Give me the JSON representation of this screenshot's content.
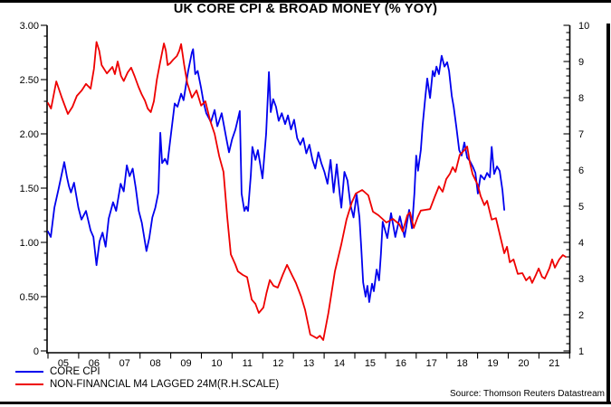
{
  "title": "UK CORE CPI & BROAD MONEY (% YOY)",
  "source_note": "Source: Thomson Reuters Datastream",
  "colors": {
    "cpi_blue": "#0000ee",
    "m4_red": "#ee0000",
    "frame_black": "#000000"
  },
  "chart_data": {
    "type": "line",
    "title": "UK CORE CPI & BROAD MONEY (% YOY)",
    "grid": false,
    "legend_position": "bottom-left",
    "x_axis": {
      "tick_labels": [
        "05",
        "06",
        "07",
        "08",
        "09",
        "10",
        "11",
        "12",
        "13",
        "14",
        "15",
        "16",
        "17",
        "18",
        "19",
        "20",
        "21"
      ],
      "range_years": [
        2005,
        2022
      ]
    },
    "left_axis": {
      "min": 0,
      "max": 3,
      "major_step": 0.5,
      "minor_step": 0.1,
      "tick_labels": [
        "3.00",
        "2.50",
        "2.00",
        "1.50",
        "1.00",
        "0.50",
        "0"
      ]
    },
    "right_axis": {
      "min": 1,
      "max": 10,
      "major_step": 1,
      "minor_step": 0.2,
      "tick_labels": [
        "10",
        "9",
        "8",
        "7",
        "6",
        "5",
        "4",
        "3",
        "2",
        "1"
      ]
    },
    "series": [
      {
        "name": "CORE CPI",
        "axis": "left",
        "color": "#0000ee",
        "points": [
          [
            2005.0,
            1.1
          ],
          [
            2005.09,
            1.05
          ],
          [
            2005.21,
            1.32
          ],
          [
            2005.35,
            1.5
          ],
          [
            2005.53,
            1.74
          ],
          [
            2005.62,
            1.6
          ],
          [
            2005.68,
            1.52
          ],
          [
            2005.75,
            1.46
          ],
          [
            2005.85,
            1.55
          ],
          [
            2005.99,
            1.32
          ],
          [
            2006.09,
            1.21
          ],
          [
            2006.24,
            1.29
          ],
          [
            2006.39,
            1.11
          ],
          [
            2006.48,
            1.05
          ],
          [
            2006.58,
            0.79
          ],
          [
            2006.68,
            1.01
          ],
          [
            2006.78,
            1.09
          ],
          [
            2006.88,
            0.96
          ],
          [
            2006.98,
            1.22
          ],
          [
            2007.12,
            1.37
          ],
          [
            2007.22,
            1.29
          ],
          [
            2007.37,
            1.54
          ],
          [
            2007.47,
            1.47
          ],
          [
            2007.57,
            1.71
          ],
          [
            2007.66,
            1.61
          ],
          [
            2007.76,
            1.68
          ],
          [
            2007.86,
            1.5
          ],
          [
            2007.96,
            1.29
          ],
          [
            2008.06,
            1.18
          ],
          [
            2008.21,
            0.92
          ],
          [
            2008.3,
            1.04
          ],
          [
            2008.4,
            1.23
          ],
          [
            2008.5,
            1.32
          ],
          [
            2008.6,
            1.46
          ],
          [
            2008.66,
            2.01
          ],
          [
            2008.72,
            1.73
          ],
          [
            2008.81,
            1.77
          ],
          [
            2008.89,
            1.72
          ],
          [
            2008.98,
            1.93
          ],
          [
            2009.13,
            2.28
          ],
          [
            2009.22,
            2.25
          ],
          [
            2009.34,
            2.37
          ],
          [
            2009.42,
            2.31
          ],
          [
            2009.57,
            2.58
          ],
          [
            2009.69,
            2.75
          ],
          [
            2009.73,
            2.78
          ],
          [
            2009.8,
            2.55
          ],
          [
            2009.88,
            2.58
          ],
          [
            2009.99,
            2.42
          ],
          [
            2010.07,
            2.29
          ],
          [
            2010.16,
            2.19
          ],
          [
            2010.31,
            2.11
          ],
          [
            2010.43,
            2.22
          ],
          [
            2010.52,
            2.07
          ],
          [
            2010.66,
            2.19
          ],
          [
            2010.81,
            1.96
          ],
          [
            2010.9,
            1.83
          ],
          [
            2011.0,
            1.95
          ],
          [
            2011.11,
            2.04
          ],
          [
            2011.25,
            2.21
          ],
          [
            2011.31,
            1.45
          ],
          [
            2011.4,
            1.29
          ],
          [
            2011.46,
            1.33
          ],
          [
            2011.52,
            1.29
          ],
          [
            2011.61,
            1.62
          ],
          [
            2011.66,
            1.88
          ],
          [
            2011.76,
            1.76
          ],
          [
            2011.84,
            1.85
          ],
          [
            2011.99,
            1.59
          ],
          [
            2012.11,
            2.0
          ],
          [
            2012.2,
            2.57
          ],
          [
            2012.26,
            2.2
          ],
          [
            2012.34,
            2.32
          ],
          [
            2012.43,
            2.25
          ],
          [
            2012.52,
            2.12
          ],
          [
            2012.62,
            2.19
          ],
          [
            2012.73,
            2.09
          ],
          [
            2012.82,
            2.17
          ],
          [
            2012.92,
            2.04
          ],
          [
            2013.02,
            2.13
          ],
          [
            2013.12,
            1.96
          ],
          [
            2013.22,
            1.9
          ],
          [
            2013.32,
            1.96
          ],
          [
            2013.42,
            1.82
          ],
          [
            2013.52,
            1.9
          ],
          [
            2013.62,
            1.76
          ],
          [
            2013.71,
            1.68
          ],
          [
            2013.81,
            1.83
          ],
          [
            2013.91,
            1.73
          ],
          [
            2014.01,
            1.65
          ],
          [
            2014.11,
            1.54
          ],
          [
            2014.21,
            1.76
          ],
          [
            2014.31,
            1.46
          ],
          [
            2014.41,
            1.72
          ],
          [
            2014.51,
            1.44
          ],
          [
            2014.56,
            1.32
          ],
          [
            2014.66,
            1.65
          ],
          [
            2014.76,
            1.57
          ],
          [
            2014.86,
            1.34
          ],
          [
            2014.96,
            1.23
          ],
          [
            2015.06,
            1.44
          ],
          [
            2015.15,
            1.23
          ],
          [
            2015.21,
            0.95
          ],
          [
            2015.27,
            0.63
          ],
          [
            2015.35,
            0.5
          ],
          [
            2015.41,
            0.6
          ],
          [
            2015.47,
            0.45
          ],
          [
            2015.56,
            0.62
          ],
          [
            2015.62,
            0.55
          ],
          [
            2015.71,
            0.75
          ],
          [
            2015.79,
            0.65
          ],
          [
            2015.85,
            0.89
          ],
          [
            2015.91,
            1.19
          ],
          [
            2016.06,
            1.04
          ],
          [
            2016.18,
            1.27
          ],
          [
            2016.32,
            1.05
          ],
          [
            2016.47,
            1.24
          ],
          [
            2016.62,
            1.05
          ],
          [
            2016.77,
            1.3
          ],
          [
            2016.86,
            1.13
          ],
          [
            2016.94,
            1.45
          ],
          [
            2017.0,
            1.8
          ],
          [
            2017.06,
            1.66
          ],
          [
            2017.15,
            1.85
          ],
          [
            2017.21,
            2.08
          ],
          [
            2017.3,
            2.35
          ],
          [
            2017.36,
            2.51
          ],
          [
            2017.45,
            2.33
          ],
          [
            2017.54,
            2.58
          ],
          [
            2017.6,
            2.53
          ],
          [
            2017.66,
            2.62
          ],
          [
            2017.74,
            2.55
          ],
          [
            2017.83,
            2.72
          ],
          [
            2017.92,
            2.62
          ],
          [
            2018.01,
            2.66
          ],
          [
            2018.07,
            2.58
          ],
          [
            2018.16,
            2.35
          ],
          [
            2018.22,
            2.25
          ],
          [
            2018.31,
            2.06
          ],
          [
            2018.4,
            1.85
          ],
          [
            2018.48,
            1.8
          ],
          [
            2018.57,
            1.92
          ],
          [
            2018.66,
            1.78
          ],
          [
            2018.75,
            1.75
          ],
          [
            2018.84,
            1.7
          ],
          [
            2018.93,
            1.64
          ],
          [
            2019.01,
            1.45
          ],
          [
            2019.1,
            1.62
          ],
          [
            2019.22,
            1.58
          ],
          [
            2019.31,
            1.64
          ],
          [
            2019.4,
            1.6
          ],
          [
            2019.46,
            1.88
          ],
          [
            2019.54,
            1.63
          ],
          [
            2019.63,
            1.7
          ],
          [
            2019.72,
            1.66
          ],
          [
            2019.81,
            1.48
          ],
          [
            2019.87,
            1.3
          ]
        ]
      },
      {
        "name": "NON-FINANCIAL M4 LAGGED 24M(R.H.SCALE)",
        "axis": "right",
        "color": "#ee0000",
        "points": [
          [
            2005.0,
            7.85
          ],
          [
            2005.1,
            7.7
          ],
          [
            2005.27,
            8.45
          ],
          [
            2005.45,
            8.0
          ],
          [
            2005.65,
            7.55
          ],
          [
            2005.8,
            7.75
          ],
          [
            2005.94,
            8.05
          ],
          [
            2006.1,
            8.2
          ],
          [
            2006.24,
            8.38
          ],
          [
            2006.39,
            8.25
          ],
          [
            2006.5,
            8.8
          ],
          [
            2006.58,
            9.54
          ],
          [
            2006.67,
            9.3
          ],
          [
            2006.75,
            8.9
          ],
          [
            2006.92,
            8.67
          ],
          [
            2007.0,
            8.75
          ],
          [
            2007.1,
            8.85
          ],
          [
            2007.18,
            8.65
          ],
          [
            2007.27,
            9.0
          ],
          [
            2007.38,
            8.6
          ],
          [
            2007.47,
            8.46
          ],
          [
            2007.6,
            8.7
          ],
          [
            2007.71,
            8.83
          ],
          [
            2007.82,
            8.6
          ],
          [
            2007.95,
            8.3
          ],
          [
            2008.05,
            8.1
          ],
          [
            2008.16,
            7.92
          ],
          [
            2008.25,
            7.7
          ],
          [
            2008.35,
            7.6
          ],
          [
            2008.45,
            7.9
          ],
          [
            2008.55,
            8.5
          ],
          [
            2008.66,
            9.0
          ],
          [
            2008.72,
            9.25
          ],
          [
            2008.78,
            9.5
          ],
          [
            2008.84,
            9.3
          ],
          [
            2008.9,
            8.9
          ],
          [
            2008.98,
            8.95
          ],
          [
            2009.08,
            9.05
          ],
          [
            2009.2,
            9.15
          ],
          [
            2009.28,
            9.3
          ],
          [
            2009.34,
            9.48
          ],
          [
            2009.44,
            8.9
          ],
          [
            2009.54,
            8.4
          ],
          [
            2009.69,
            8.0
          ],
          [
            2009.84,
            8.2
          ],
          [
            2009.99,
            7.78
          ],
          [
            2010.13,
            7.9
          ],
          [
            2010.28,
            7.38
          ],
          [
            2010.43,
            7.0
          ],
          [
            2010.58,
            6.38
          ],
          [
            2010.72,
            5.95
          ],
          [
            2010.84,
            4.71
          ],
          [
            2010.96,
            3.67
          ],
          [
            2011.1,
            3.4
          ],
          [
            2011.19,
            3.2
          ],
          [
            2011.35,
            3.1
          ],
          [
            2011.49,
            3.04
          ],
          [
            2011.64,
            2.42
          ],
          [
            2011.76,
            2.3
          ],
          [
            2011.87,
            2.05
          ],
          [
            2012.02,
            2.2
          ],
          [
            2012.12,
            2.6
          ],
          [
            2012.23,
            2.96
          ],
          [
            2012.35,
            2.8
          ],
          [
            2012.49,
            2.75
          ],
          [
            2012.65,
            3.1
          ],
          [
            2012.79,
            3.38
          ],
          [
            2012.95,
            3.1
          ],
          [
            2013.08,
            2.88
          ],
          [
            2013.25,
            2.5
          ],
          [
            2013.38,
            2.13
          ],
          [
            2013.55,
            1.45
          ],
          [
            2013.66,
            1.4
          ],
          [
            2013.76,
            1.35
          ],
          [
            2013.86,
            1.42
          ],
          [
            2013.97,
            1.3
          ],
          [
            2014.14,
            2.05
          ],
          [
            2014.35,
            3.2
          ],
          [
            2014.56,
            3.95
          ],
          [
            2014.73,
            4.63
          ],
          [
            2014.9,
            5.1
          ],
          [
            2015.03,
            5.35
          ],
          [
            2015.24,
            5.45
          ],
          [
            2015.44,
            5.3
          ],
          [
            2015.59,
            4.85
          ],
          [
            2015.77,
            4.75
          ],
          [
            2015.9,
            4.65
          ],
          [
            2016.03,
            4.55
          ],
          [
            2016.24,
            4.65
          ],
          [
            2016.45,
            4.5
          ],
          [
            2016.56,
            4.3
          ],
          [
            2016.71,
            4.75
          ],
          [
            2016.8,
            4.83
          ],
          [
            2016.92,
            4.4
          ],
          [
            2017.05,
            4.7
          ],
          [
            2017.15,
            4.88
          ],
          [
            2017.3,
            4.9
          ],
          [
            2017.45,
            4.92
          ],
          [
            2017.6,
            5.25
          ],
          [
            2017.74,
            5.55
          ],
          [
            2017.86,
            5.4
          ],
          [
            2017.98,
            5.75
          ],
          [
            2018.1,
            5.9
          ],
          [
            2018.19,
            6.08
          ],
          [
            2018.28,
            5.95
          ],
          [
            2018.42,
            6.42
          ],
          [
            2018.57,
            6.55
          ],
          [
            2018.66,
            6.65
          ],
          [
            2018.75,
            6.2
          ],
          [
            2018.84,
            5.88
          ],
          [
            2019.01,
            5.58
          ],
          [
            2019.1,
            5.28
          ],
          [
            2019.22,
            5.03
          ],
          [
            2019.31,
            5.15
          ],
          [
            2019.46,
            4.63
          ],
          [
            2019.6,
            4.67
          ],
          [
            2019.75,
            4.13
          ],
          [
            2019.87,
            3.7
          ],
          [
            2019.96,
            3.88
          ],
          [
            2020.05,
            3.45
          ],
          [
            2020.17,
            3.53
          ],
          [
            2020.31,
            3.13
          ],
          [
            2020.46,
            3.15
          ],
          [
            2020.58,
            2.95
          ],
          [
            2020.7,
            3.05
          ],
          [
            2020.78,
            2.88
          ],
          [
            2020.9,
            3.1
          ],
          [
            2020.99,
            3.28
          ],
          [
            2021.1,
            3.05
          ],
          [
            2021.19,
            3.0
          ],
          [
            2021.34,
            3.28
          ],
          [
            2021.43,
            3.53
          ],
          [
            2021.52,
            3.3
          ],
          [
            2021.66,
            3.53
          ],
          [
            2021.78,
            3.65
          ],
          [
            2021.87,
            3.6
          ]
        ]
      }
    ]
  }
}
